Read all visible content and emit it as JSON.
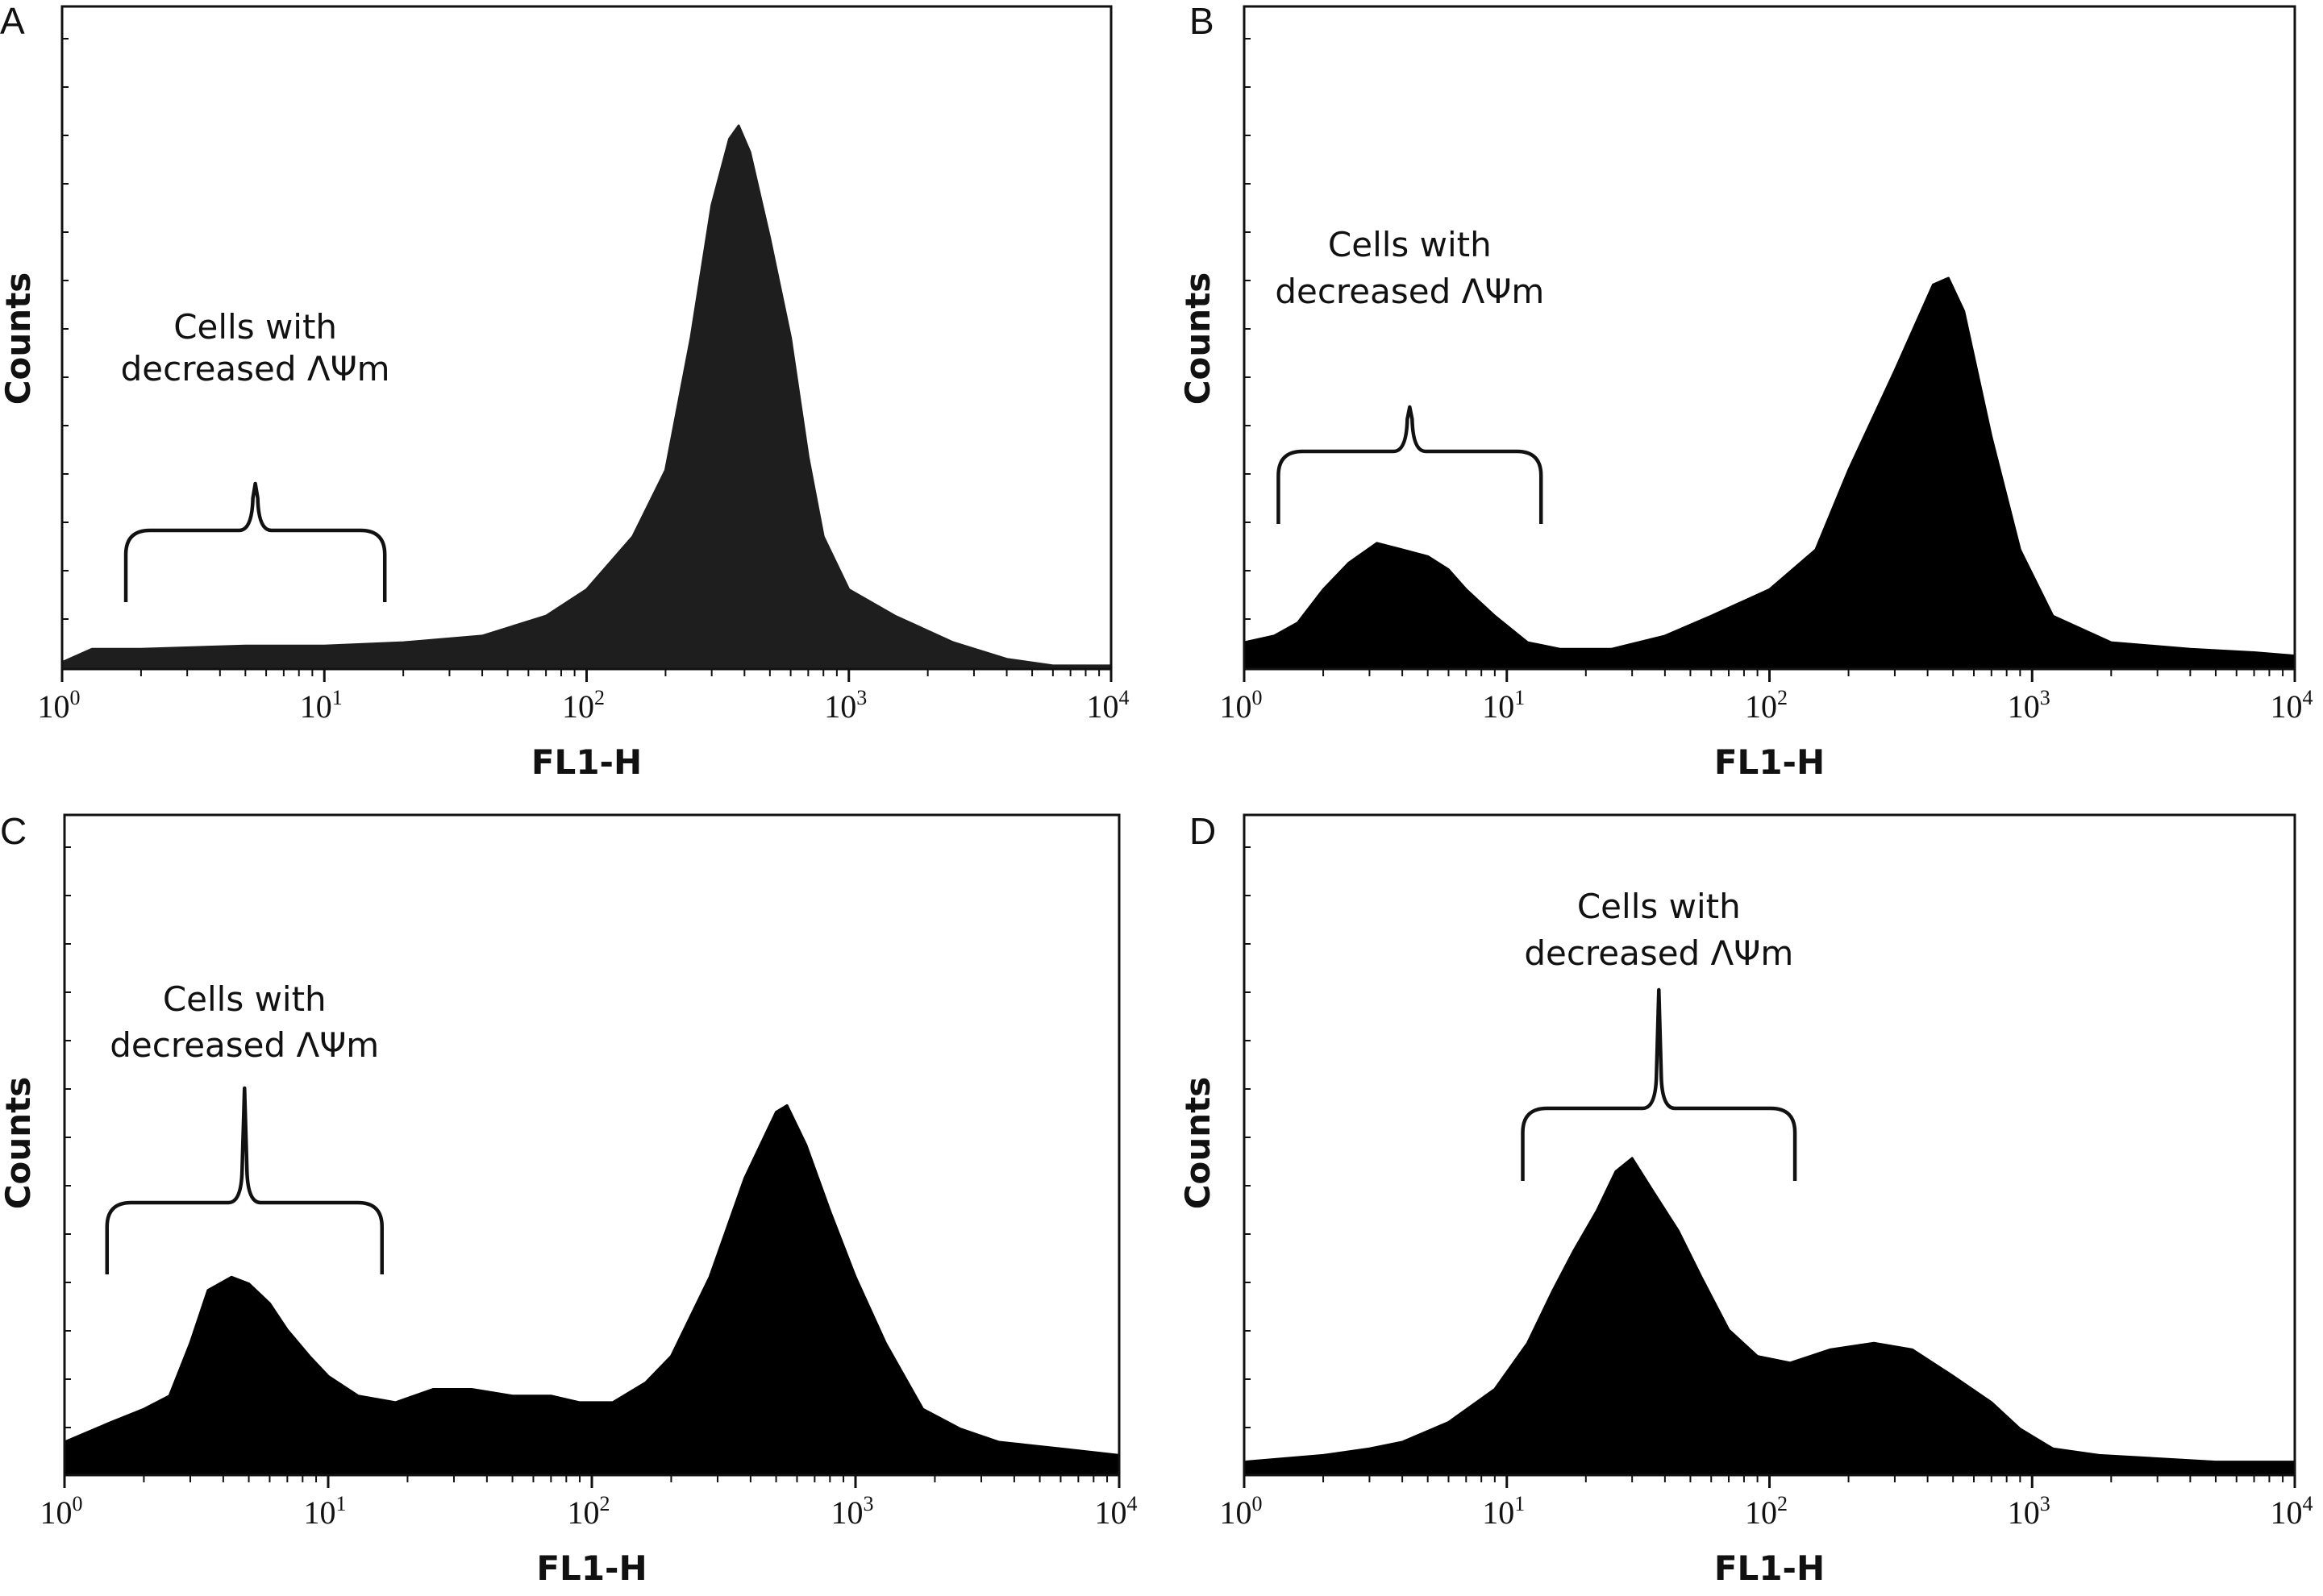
{
  "chart_data": [
    {
      "panel": "A",
      "type": "area",
      "title": "",
      "xlabel": "FL1-H",
      "ylabel": "Counts",
      "xscale": "log",
      "xlim": [
        1,
        10000
      ],
      "x_tick_labels": [
        {
          "base": "10",
          "exp": "0"
        },
        {
          "base": "10",
          "exp": "1"
        },
        {
          "base": "10",
          "exp": "2"
        },
        {
          "base": "10",
          "exp": "3"
        },
        {
          "base": "10",
          "exp": "4"
        }
      ],
      "annotation": {
        "line1": "Cells with",
        "line2": "decreased ΛΨm",
        "range": [
          1.75,
          17
        ]
      },
      "series": [
        {
          "name": "histogram",
          "fill": "#1e1e1e",
          "points": [
            [
              1.0,
              0.01
            ],
            [
              1.3,
              0.03
            ],
            [
              2.0,
              0.03
            ],
            [
              5.0,
              0.035
            ],
            [
              10.0,
              0.035
            ],
            [
              20.0,
              0.04
            ],
            [
              40.0,
              0.05
            ],
            [
              70.0,
              0.08
            ],
            [
              100.0,
              0.12
            ],
            [
              150.0,
              0.2
            ],
            [
              200.0,
              0.3
            ],
            [
              250.0,
              0.5
            ],
            [
              300.0,
              0.7
            ],
            [
              350.0,
              0.8
            ],
            [
              380.0,
              0.82
            ],
            [
              420.0,
              0.78
            ],
            [
              500.0,
              0.65
            ],
            [
              600.0,
              0.5
            ],
            [
              700.0,
              0.32
            ],
            [
              800.0,
              0.2
            ],
            [
              1000.0,
              0.12
            ],
            [
              1500.0,
              0.08
            ],
            [
              2500.0,
              0.04
            ],
            [
              4000.0,
              0.015
            ],
            [
              6000.0,
              0.005
            ],
            [
              10000.0,
              0.005
            ]
          ]
        }
      ]
    },
    {
      "panel": "B",
      "type": "area",
      "title": "",
      "xlabel": "FL1-H",
      "ylabel": "Counts",
      "xscale": "log",
      "xlim": [
        1,
        10000
      ],
      "x_tick_labels": [
        {
          "base": "10",
          "exp": "0"
        },
        {
          "base": "10",
          "exp": "1"
        },
        {
          "base": "10",
          "exp": "2"
        },
        {
          "base": "10",
          "exp": "3"
        },
        {
          "base": "10",
          "exp": "4"
        }
      ],
      "annotation": {
        "line1": "Cells with",
        "line2": "decreased ΛΨm",
        "range": [
          1.35,
          13.5
        ]
      },
      "series": [
        {
          "name": "histogram",
          "fill": "#000000",
          "points": [
            [
              1.0,
              0.04
            ],
            [
              1.3,
              0.05
            ],
            [
              1.6,
              0.07
            ],
            [
              2.0,
              0.12
            ],
            [
              2.5,
              0.16
            ],
            [
              3.2,
              0.19
            ],
            [
              4.0,
              0.18
            ],
            [
              5.0,
              0.17
            ],
            [
              6.0,
              0.15
            ],
            [
              7.0,
              0.12
            ],
            [
              9.0,
              0.08
            ],
            [
              12.0,
              0.04
            ],
            [
              16.0,
              0.03
            ],
            [
              25.0,
              0.03
            ],
            [
              40.0,
              0.05
            ],
            [
              60.0,
              0.08
            ],
            [
              100.0,
              0.12
            ],
            [
              150.0,
              0.18
            ],
            [
              200.0,
              0.3
            ],
            [
              300.0,
              0.45
            ],
            [
              420.0,
              0.58
            ],
            [
              480.0,
              0.59
            ],
            [
              550.0,
              0.54
            ],
            [
              700.0,
              0.35
            ],
            [
              900.0,
              0.18
            ],
            [
              1200.0,
              0.08
            ],
            [
              2000.0,
              0.04
            ],
            [
              4000.0,
              0.03
            ],
            [
              7000.0,
              0.025
            ],
            [
              10000.0,
              0.02
            ]
          ]
        }
      ]
    },
    {
      "panel": "C",
      "type": "area",
      "title": "",
      "xlabel": "FL1-H",
      "ylabel": "Counts",
      "xscale": "log",
      "xlim": [
        1,
        10000
      ],
      "x_tick_labels": [
        {
          "base": "10",
          "exp": "0"
        },
        {
          "base": "10",
          "exp": "1"
        },
        {
          "base": "10",
          "exp": "2"
        },
        {
          "base": "10",
          "exp": "3"
        },
        {
          "base": "10",
          "exp": "4"
        }
      ],
      "annotation": {
        "line1": "Cells with",
        "line2": "decreased ΛΨm",
        "range": [
          1.45,
          16
        ]
      },
      "series": [
        {
          "name": "histogram",
          "fill": "#000000",
          "points": [
            [
              1.0,
              0.05
            ],
            [
              1.5,
              0.08
            ],
            [
              2.0,
              0.1
            ],
            [
              2.5,
              0.12
            ],
            [
              3.0,
              0.2
            ],
            [
              3.5,
              0.28
            ],
            [
              4.3,
              0.3
            ],
            [
              5.0,
              0.29
            ],
            [
              6.0,
              0.26
            ],
            [
              7.0,
              0.22
            ],
            [
              8.5,
              0.18
            ],
            [
              10.0,
              0.15
            ],
            [
              13.0,
              0.12
            ],
            [
              18.0,
              0.11
            ],
            [
              25.0,
              0.13
            ],
            [
              35.0,
              0.13
            ],
            [
              50.0,
              0.12
            ],
            [
              70.0,
              0.12
            ],
            [
              90.0,
              0.11
            ],
            [
              120.0,
              0.11
            ],
            [
              160.0,
              0.14
            ],
            [
              200.0,
              0.18
            ],
            [
              280.0,
              0.3
            ],
            [
              380.0,
              0.45
            ],
            [
              500.0,
              0.55
            ],
            [
              550.0,
              0.56
            ],
            [
              650.0,
              0.5
            ],
            [
              800.0,
              0.4
            ],
            [
              1000.0,
              0.3
            ],
            [
              1300.0,
              0.2
            ],
            [
              1800.0,
              0.1
            ],
            [
              2500.0,
              0.07
            ],
            [
              3500.0,
              0.05
            ],
            [
              6000.0,
              0.04
            ],
            [
              10000.0,
              0.03
            ]
          ]
        }
      ]
    },
    {
      "panel": "D",
      "type": "area",
      "title": "",
      "xlabel": "FL1-H",
      "ylabel": "Counts",
      "xscale": "log",
      "xlim": [
        1,
        10000
      ],
      "x_tick_labels": [
        {
          "base": "10",
          "exp": "0"
        },
        {
          "base": "10",
          "exp": "1"
        },
        {
          "base": "10",
          "exp": "2"
        },
        {
          "base": "10",
          "exp": "3"
        },
        {
          "base": "10",
          "exp": "4"
        }
      ],
      "annotation": {
        "line1": "Cells with",
        "line2": "decreased ΛΨm",
        "range": [
          11.5,
          125
        ]
      },
      "series": [
        {
          "name": "histogram",
          "fill": "#000000",
          "points": [
            [
              1.0,
              0.02
            ],
            [
              2.0,
              0.03
            ],
            [
              3.0,
              0.04
            ],
            [
              4.0,
              0.05
            ],
            [
              6.0,
              0.08
            ],
            [
              9.0,
              0.13
            ],
            [
              12.0,
              0.2
            ],
            [
              15.0,
              0.28
            ],
            [
              18.0,
              0.34
            ],
            [
              22.0,
              0.4
            ],
            [
              26.0,
              0.46
            ],
            [
              30.0,
              0.48
            ],
            [
              36.0,
              0.43
            ],
            [
              45.0,
              0.37
            ],
            [
              55.0,
              0.3
            ],
            [
              70.0,
              0.22
            ],
            [
              90.0,
              0.18
            ],
            [
              120.0,
              0.17
            ],
            [
              170.0,
              0.19
            ],
            [
              250.0,
              0.2
            ],
            [
              350.0,
              0.19
            ],
            [
              500.0,
              0.15
            ],
            [
              700.0,
              0.11
            ],
            [
              900.0,
              0.07
            ],
            [
              1200.0,
              0.04
            ],
            [
              1800.0,
              0.03
            ],
            [
              3000.0,
              0.025
            ],
            [
              5000.0,
              0.02
            ],
            [
              10000.0,
              0.02
            ]
          ]
        }
      ]
    }
  ]
}
